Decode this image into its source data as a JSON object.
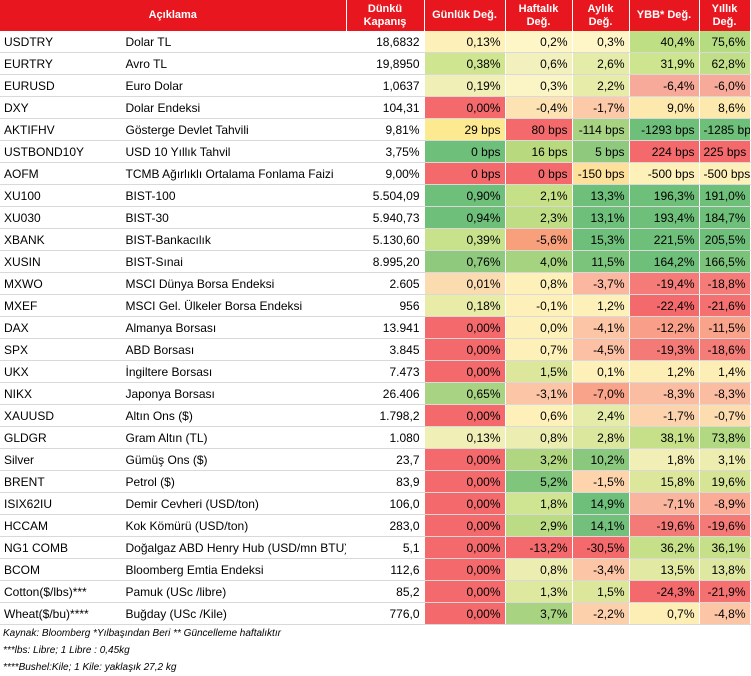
{
  "headers": [
    "Açıklama",
    "Dünkü Kapanış",
    "Günlük Değ.",
    "Haftalık Değ.",
    "Aylık Değ.",
    "YBB* Değ.",
    "Yıllık Değ."
  ],
  "rows": [
    {
      "code": "USDTRY",
      "desc": "Dolar TL",
      "close": "18,6832",
      "daily": "0,13%",
      "weekly": "0,2%",
      "monthly": "0,3%",
      "ytd": "40,4%",
      "yearly": "75,6%",
      "colors": [
        "#fdf0b8",
        "#fef6c6",
        "#fef6c6",
        "#bedf84",
        "#b5dc80"
      ]
    },
    {
      "code": "EURTRY",
      "desc": "Avro TL",
      "close": "19,8950",
      "daily": "0,38%",
      "weekly": "0,6%",
      "monthly": "2,6%",
      "ytd": "31,9%",
      "yearly": "62,8%",
      "colors": [
        "#cfe58f",
        "#f2f1be",
        "#e5eba9",
        "#cde58f",
        "#c1df88"
      ]
    },
    {
      "code": "EURUSD",
      "desc": "Euro Dolar",
      "close": "1,0637",
      "daily": "0,19%",
      "weekly": "0,3%",
      "monthly": "2,2%",
      "ytd": "-6,4%",
      "yearly": "-6,0%",
      "colors": [
        "#f0efb5",
        "#fbf4c4",
        "#e8eca9",
        "#f7a99a",
        "#f7aa9a"
      ]
    },
    {
      "code": "DXY",
      "desc": "Dolar Endeksi",
      "close": "104,31",
      "daily": "0,00%",
      "weekly": "-0,4%",
      "monthly": "-1,7%",
      "ytd": "9,0%",
      "yearly": "8,6%",
      "colors": [
        "#f46a6c",
        "#fde3b4",
        "#fccaa9",
        "#fde9ad",
        "#fde9ad"
      ]
    },
    {
      "code": "AKTIFHV",
      "desc": "Gösterge Devlet Tahvili",
      "close": "9,81%",
      "daily": "29 bps",
      "weekly": "80 bps",
      "monthly": "-114 bps",
      "ytd": "-1293 bps",
      "yearly": "-1285 bps",
      "colors": [
        "#fde98f",
        "#f46a6c",
        "#a6d281",
        "#6ebf7a",
        "#6ebf7a"
      ]
    },
    {
      "code": "USTBOND10Y",
      "desc": "USD 10 Yıllık Tahvil",
      "close": "3,75%",
      "daily": "0 bps",
      "weekly": "16 bps",
      "monthly": "5 bps",
      "ytd": "224 bps",
      "yearly": "225 bps",
      "colors": [
        "#6ebf7a",
        "#b9d97f",
        "#8ec97e",
        "#f46a6c",
        "#f46a6c"
      ]
    },
    {
      "code": "AOFM",
      "desc": "TCMB Ağırlıklı Ortalama Fonlama Faizi",
      "close": "9,00%",
      "daily": "0 bps",
      "weekly": "0 bps",
      "monthly": "-150 bps",
      "ytd": "-500 bps",
      "yearly": "-500 bps",
      "colors": [
        "#f46a6c",
        "#f46a6c",
        "#fde09a",
        "#fdf0b8",
        "#fdf0b8"
      ]
    },
    {
      "code": "XU100",
      "desc": "BIST-100",
      "close": "5.504,09",
      "daily": "0,90%",
      "weekly": "2,1%",
      "monthly": "13,3%",
      "ytd": "196,3%",
      "yearly": "191,0%",
      "colors": [
        "#6ebf7a",
        "#c5e087",
        "#6ebf7a",
        "#6ebf7a",
        "#6ebf7a"
      ]
    },
    {
      "code": "XU030",
      "desc": "BIST-30",
      "close": "5.940,73",
      "daily": "0,94%",
      "weekly": "2,3%",
      "monthly": "13,1%",
      "ytd": "193,4%",
      "yearly": "184,7%",
      "colors": [
        "#6ebf7a",
        "#bedd85",
        "#6ebf7a",
        "#6ebf7a",
        "#6ebf7a"
      ]
    },
    {
      "code": "XBANK",
      "desc": "BIST-Bankacılık",
      "close": "5.130,60",
      "daily": "0,39%",
      "weekly": "-5,6%",
      "monthly": "15,3%",
      "ytd": "221,5%",
      "yearly": "205,5%",
      "colors": [
        "#c8e28c",
        "#f8a07c",
        "#6ebf7a",
        "#6ebf7a",
        "#6ebf7a"
      ]
    },
    {
      "code": "XUSIN",
      "desc": "BIST-Sınai",
      "close": "8.995,20",
      "daily": "0,76%",
      "weekly": "4,0%",
      "monthly": "11,5%",
      "ytd": "164,2%",
      "yearly": "166,5%",
      "colors": [
        "#8fc97e",
        "#a5d380",
        "#7bc47c",
        "#6ebf7a",
        "#7bc37b"
      ]
    },
    {
      "code": "MXWO",
      "desc": "MSCI Dünya Borsa Endeksi",
      "close": "2.605",
      "daily": "0,01%",
      "weekly": "0,8%",
      "monthly": "-3,7%",
      "ytd": "-19,4%",
      "yearly": "-18,8%",
      "colors": [
        "#fbdcb0",
        "#fdf0b8",
        "#fbb7a0",
        "#f47b78",
        "#f47b78"
      ]
    },
    {
      "code": "MXEF",
      "desc": "MSCI Gel. Ülkeler Borsa Endeksi",
      "close": "956",
      "daily": "0,18%",
      "weekly": "-0,1%",
      "monthly": "1,2%",
      "ytd": "-22,4%",
      "yearly": "-21,6%",
      "colors": [
        "#e9eca7",
        "#fdf0b8",
        "#fdf0b8",
        "#f46a6c",
        "#f47071"
      ]
    },
    {
      "code": "DAX",
      "desc": "Almanya Borsası",
      "close": "13.941",
      "daily": "0,00%",
      "weekly": "0,0%",
      "monthly": "-4,1%",
      "ytd": "-12,2%",
      "yearly": "-11,5%",
      "colors": [
        "#f46a6c",
        "#fdf0b8",
        "#fcc6a6",
        "#f99f89",
        "#f9a38b"
      ]
    },
    {
      "code": "SPX",
      "desc": "ABD Borsası",
      "close": "3.845",
      "daily": "0,00%",
      "weekly": "0,7%",
      "monthly": "-4,5%",
      "ytd": "-19,3%",
      "yearly": "-18,6%",
      "colors": [
        "#f46a6c",
        "#fdf0b8",
        "#fcc1a4",
        "#f47a77",
        "#f47d79"
      ]
    },
    {
      "code": "UKX",
      "desc": "İngiltere Borsası",
      "close": "7.473",
      "daily": "0,00%",
      "weekly": "1,5%",
      "monthly": "0,1%",
      "ytd": "1,2%",
      "yearly": "1,4%",
      "colors": [
        "#f46a6c",
        "#dde79c",
        "#fdf0b8",
        "#fdeeb5",
        "#fdeeb5"
      ]
    },
    {
      "code": "NIKX",
      "desc": "Japonya Borsası",
      "close": "26.406",
      "daily": "0,65%",
      "weekly": "-3,1%",
      "monthly": "-7,0%",
      "ytd": "-8,3%",
      "yearly": "-8,3%",
      "colors": [
        "#a8d383",
        "#fcc6a6",
        "#f9a38b",
        "#fbbda2",
        "#fbbda2"
      ]
    },
    {
      "code": "XAUUSD",
      "desc": "Altın Ons ($)",
      "close": "1.798,2",
      "daily": "0,00%",
      "weekly": "0,6%",
      "monthly": "2,4%",
      "ytd": "-1,7%",
      "yearly": "-0,7%",
      "colors": [
        "#f46a6c",
        "#fdf0b8",
        "#e5eba8",
        "#fcd3ac",
        "#fdddb0"
      ]
    },
    {
      "code": "GLDGR",
      "desc": "Gram Altın (TL)",
      "close": "1.080",
      "daily": "0,13%",
      "weekly": "0,8%",
      "monthly": "2,8%",
      "ytd": "38,1%",
      "yearly": "73,8%",
      "colors": [
        "#f0efb5",
        "#ecedb0",
        "#dbe79d",
        "#c6e089",
        "#b0d982"
      ]
    },
    {
      "code": "Silver",
      "desc": "Gümüş Ons ($)",
      "close": "23,7",
      "daily": "0,00%",
      "weekly": "3,2%",
      "monthly": "10,2%",
      "ytd": "1,8%",
      "yearly": "3,1%",
      "colors": [
        "#f46a6c",
        "#b0d681",
        "#89c87d",
        "#f1efb6",
        "#ecedaf"
      ]
    },
    {
      "code": "BRENT",
      "desc": "Petrol ($)",
      "close": "83,9",
      "daily": "0,00%",
      "weekly": "5,2%",
      "monthly": "-1,5%",
      "ytd": "15,8%",
      "yearly": "19,6%",
      "colors": [
        "#f46a6c",
        "#7fc57c",
        "#fdd4ab",
        "#dde79c",
        "#d6e495"
      ]
    },
    {
      "code": "ISIX62IU",
      "desc": "Demir Cevheri (USD/ton)",
      "close": "106,0",
      "daily": "0,00%",
      "weekly": "1,8%",
      "monthly": "14,9%",
      "ytd": "-7,1%",
      "yearly": "-8,9%",
      "colors": [
        "#f46a6c",
        "#cfe591",
        "#6ebf7a",
        "#fab59e",
        "#faac96"
      ]
    },
    {
      "code": "HCCAM",
      "desc": "Kok Kömürü (USD/ton)",
      "close": "283,0",
      "daily": "0,00%",
      "weekly": "2,9%",
      "monthly": "14,1%",
      "ytd": "-19,6%",
      "yearly": "-19,6%",
      "colors": [
        "#f46a6c",
        "#bcdb85",
        "#72c07b",
        "#f47a77",
        "#f47a77"
      ]
    },
    {
      "code": "NG1 COMB",
      "desc": "Doğalgaz ABD Henry Hub (USD/mn BTU)",
      "close": "5,1",
      "daily": "0,00%",
      "weekly": "-13,2%",
      "monthly": "-30,5%",
      "ytd": "36,2%",
      "yearly": "36,1%",
      "colors": [
        "#f46a6c",
        "#f46a6c",
        "#f46a6c",
        "#c6e089",
        "#c5e088"
      ]
    },
    {
      "code": "BCOM",
      "desc": "Bloomberg Emtia Endeksi",
      "close": "112,6",
      "daily": "0,00%",
      "weekly": "0,8%",
      "monthly": "-3,4%",
      "ytd": "13,5%",
      "yearly": "13,8%",
      "colors": [
        "#f46a6c",
        "#ecedb0",
        "#fcc6a6",
        "#e2e9a2",
        "#dfe8a0"
      ]
    },
    {
      "code": "Cotton($/lbs)***",
      "desc": "Pamuk (USc /libre)",
      "close": "85,2",
      "daily": "0,00%",
      "weekly": "1,3%",
      "monthly": "1,5%",
      "ytd": "-24,3%",
      "yearly": "-21,9%",
      "colors": [
        "#f46a6c",
        "#dfe89f",
        "#dde79c",
        "#f46a6c",
        "#f47071"
      ]
    },
    {
      "code": "Wheat($/bu)****",
      "desc": "Buğday (USc /Kile)",
      "close": "776,0",
      "daily": "0,00%",
      "weekly": "3,7%",
      "monthly": "-2,2%",
      "ytd": "0,7%",
      "yearly": "-4,8%",
      "colors": [
        "#f46a6c",
        "#a8d381",
        "#fcd0aa",
        "#fdeeb5",
        "#fcc6a6"
      ]
    }
  ],
  "footnotes": [
    "Kaynak: Bloomberg *Yılbaşından Beri  ** Güncelleme haftalıktır",
    "***lbs: Libre; 1 Libre : 0,45kg",
    "****Bushel:Kile; 1 Kile: yaklaşık 27,2 kg"
  ],
  "colors": {
    "header_bg": "#e8171f",
    "header_text": "#ffffff"
  }
}
